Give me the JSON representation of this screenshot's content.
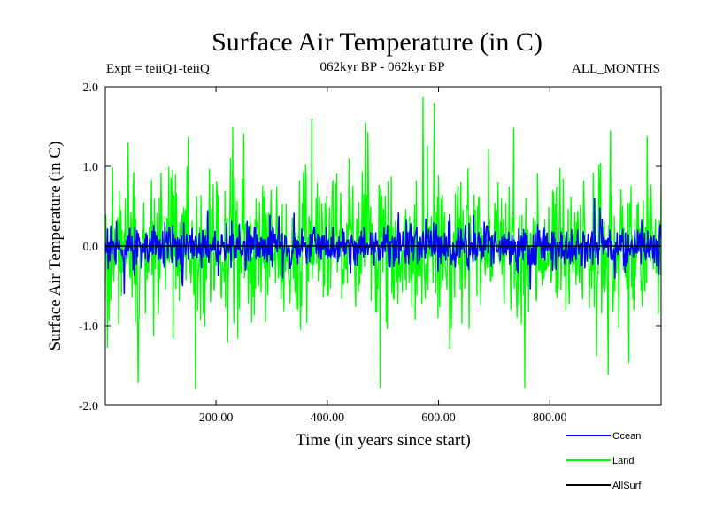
{
  "chart_data": {
    "type": "line",
    "title": "Surface Air Temperature (in C)",
    "subtitle": "062kyr BP - 062kyr BP",
    "expt_label": "Expt = teiiQ1-teiiQ",
    "months_label": "ALL_MONTHS",
    "xlabel": "Time (in years since start)",
    "ylabel": "Surface Air Temperature (in C)",
    "xlim": [
      1,
      1000
    ],
    "ylim": [
      -2.0,
      2.0
    ],
    "x_ticks": [
      200,
      400,
      600,
      800
    ],
    "x_tick_labels": [
      "200.00",
      "400.00",
      "600.00",
      "800.00"
    ],
    "y_ticks": [
      -2.0,
      -1.0,
      0.0,
      1.0,
      2.0
    ],
    "y_tick_labels": [
      "-2.0",
      "-1.0",
      "0.0",
      "1.0",
      "2.0"
    ],
    "grid": false,
    "legend_position": "bottom-right",
    "series": [
      {
        "name": "Land",
        "color": "#00ff00",
        "stats": {
          "mean": 0.0,
          "std": 0.55,
          "min": -1.8,
          "max": 1.87
        },
        "peaks": [
          {
            "x": 42,
            "y": 1.3
          },
          {
            "x": 150,
            "y": 1.37
          },
          {
            "x": 250,
            "y": 1.42
          },
          {
            "x": 372,
            "y": 1.6
          },
          {
            "x": 468,
            "y": 1.55
          },
          {
            "x": 572,
            "y": 1.87
          },
          {
            "x": 592,
            "y": 1.8
          },
          {
            "x": 735,
            "y": 1.48
          },
          {
            "x": 975,
            "y": 1.38
          },
          {
            "x": 60,
            "y": -1.72
          },
          {
            "x": 163,
            "y": -1.8
          },
          {
            "x": 495,
            "y": -1.78
          },
          {
            "x": 755,
            "y": -1.78
          },
          {
            "x": 905,
            "y": -1.62
          }
        ]
      },
      {
        "name": "Ocean",
        "color": "#0000ff",
        "stats": {
          "mean": 0.0,
          "std": 0.16,
          "min": -0.6,
          "max": 0.6
        },
        "peaks": [
          {
            "x": 185,
            "y": 0.45
          },
          {
            "x": 528,
            "y": 0.42
          },
          {
            "x": 620,
            "y": 0.4
          },
          {
            "x": 880,
            "y": 0.6
          },
          {
            "x": 890,
            "y": 0.48
          },
          {
            "x": 35,
            "y": -0.6
          },
          {
            "x": 140,
            "y": -0.5
          },
          {
            "x": 765,
            "y": -0.55
          }
        ]
      },
      {
        "name": "AllSurf",
        "color": "#000000",
        "stats": {
          "mean": 0.0,
          "std": 0.0,
          "min": 0.0,
          "max": 0.0
        },
        "peaks": []
      }
    ]
  }
}
